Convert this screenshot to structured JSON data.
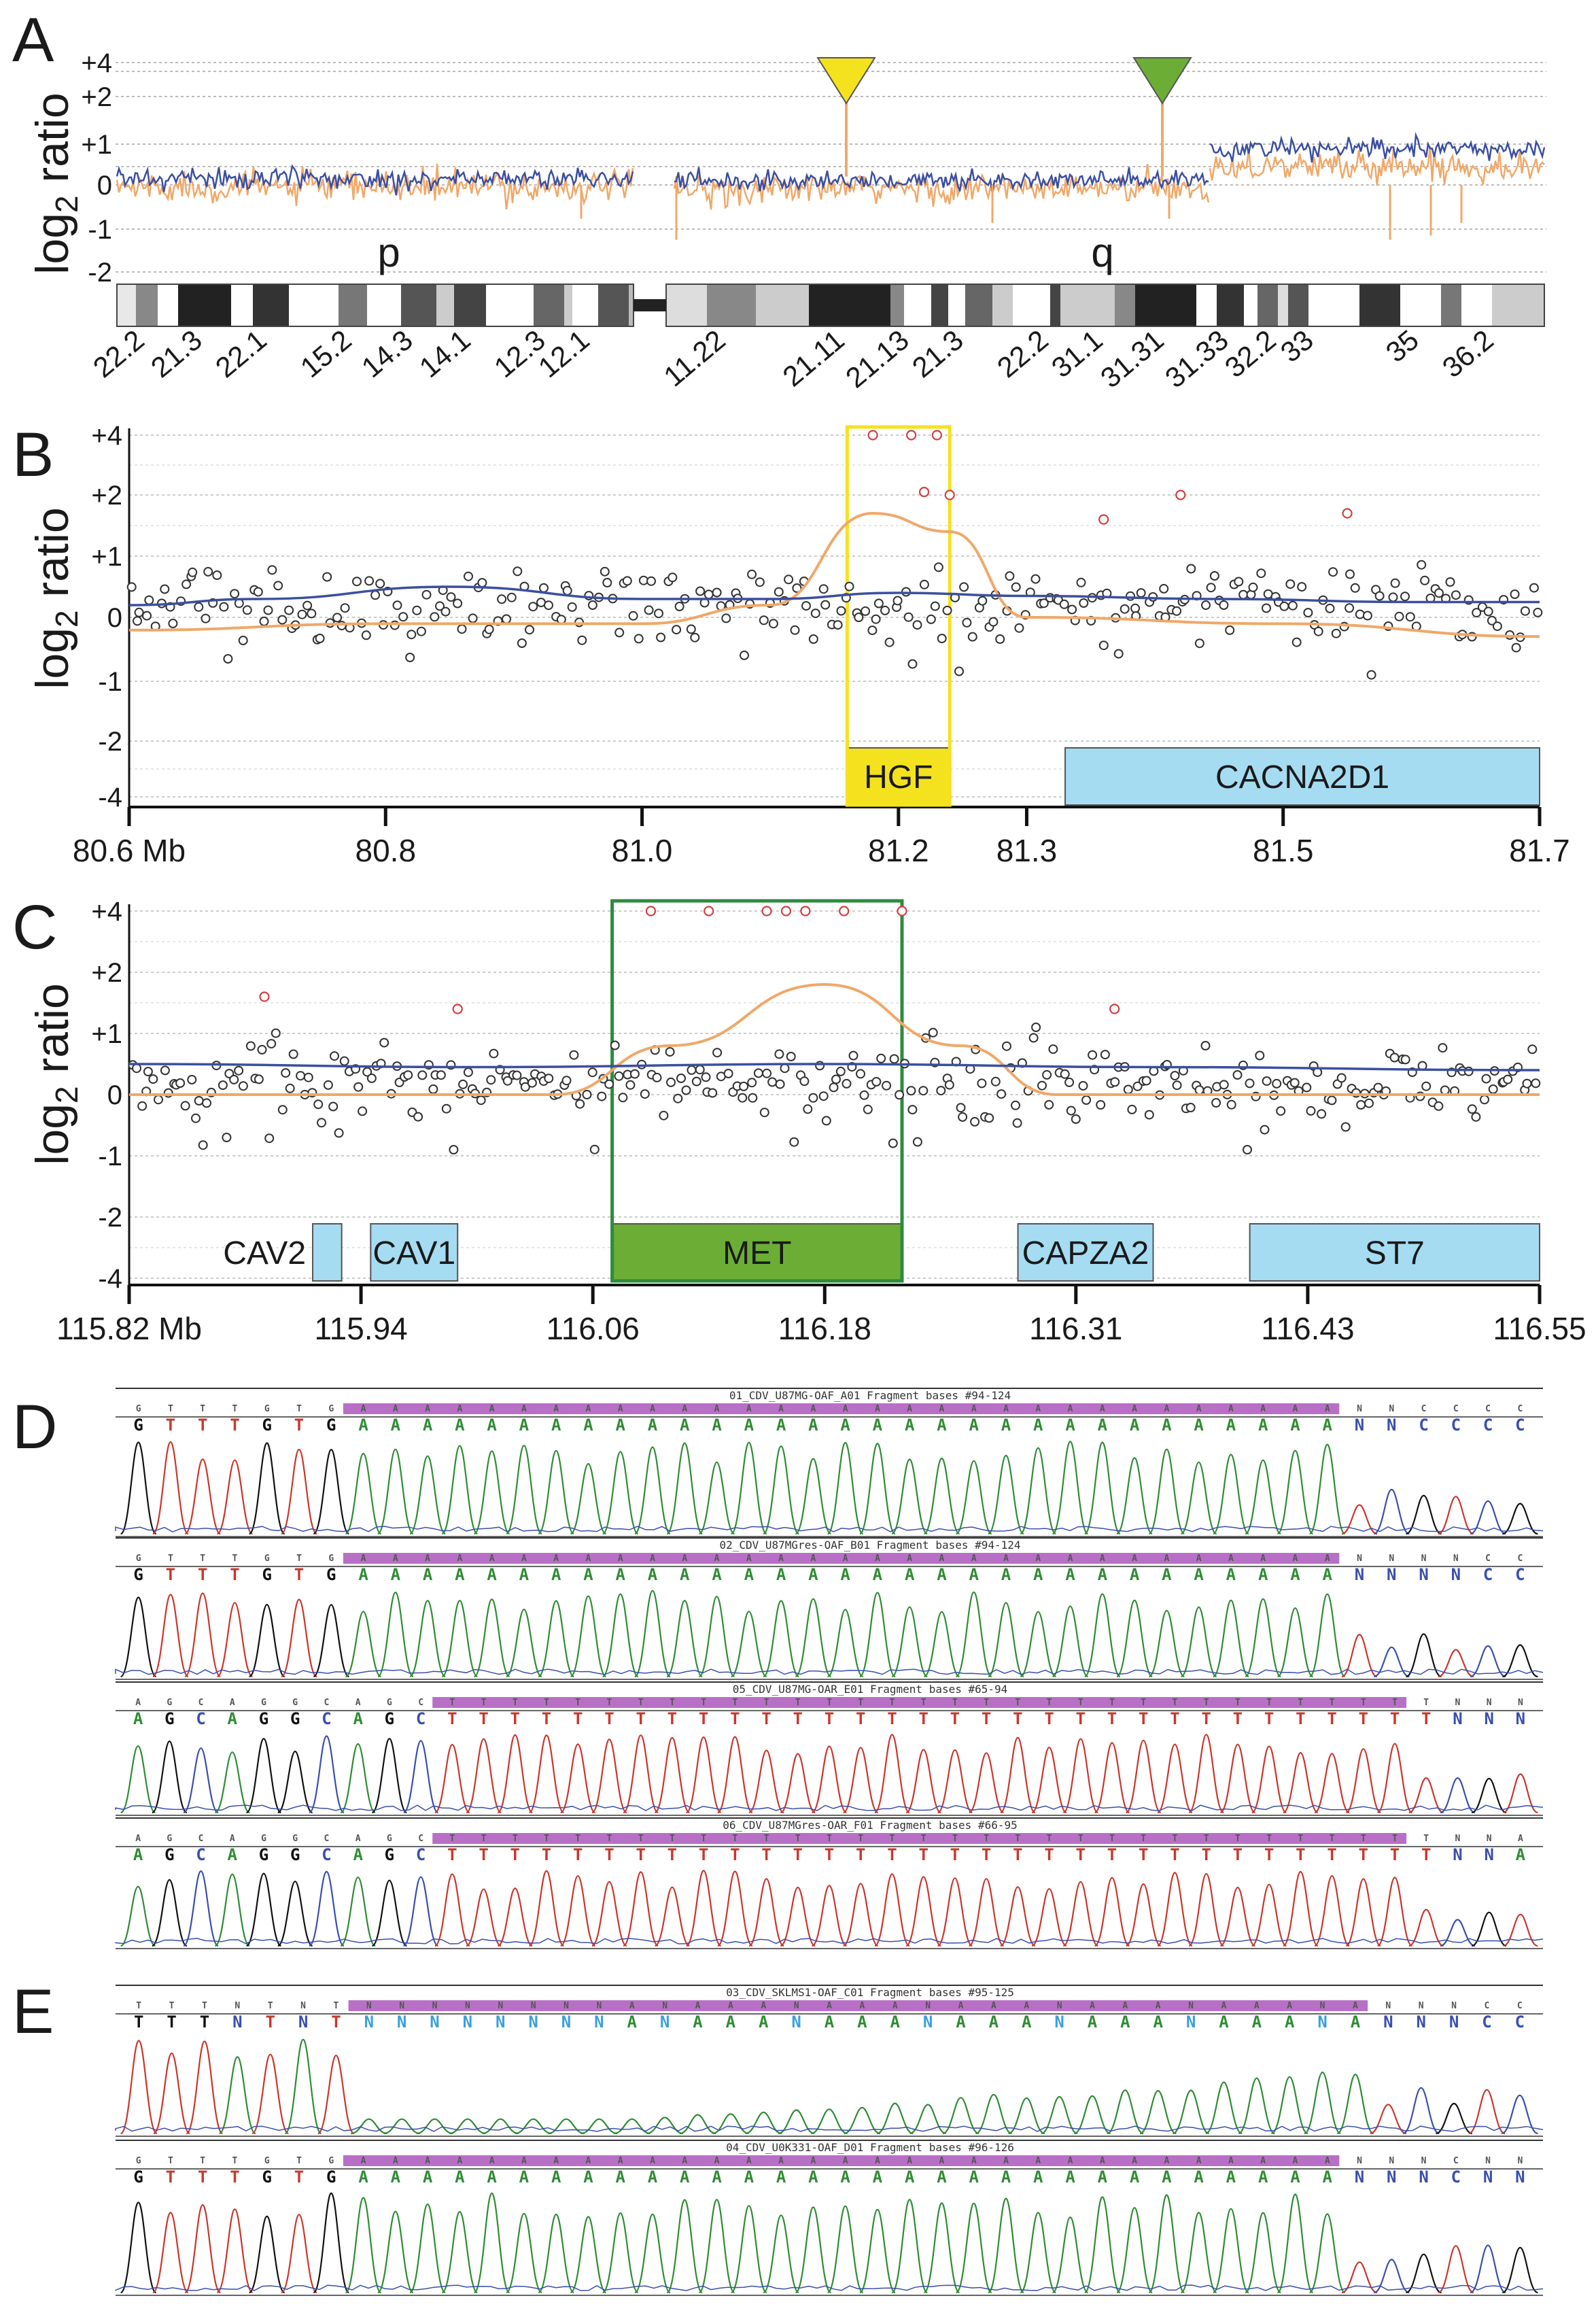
{
  "panels": {
    "A": {
      "label": "A",
      "ylabel": "log2 ratio",
      "yticks": [
        "+4",
        "+2",
        "+1",
        "0",
        "-1",
        "-2"
      ],
      "arm_p": "p",
      "arm_q": "q",
      "bands": [
        "22.2",
        "21.3",
        "22.1",
        "15.2",
        "14.3",
        "14.1",
        "12.3",
        "12.1",
        "11.22",
        "21.11",
        "21.13",
        "21.3",
        "22.2",
        "31.1",
        "31.31",
        "31.33",
        "32.2",
        "33",
        "35",
        "36.2"
      ],
      "markers": [
        {
          "name": "yellow-marker",
          "color": "#f5e21e"
        },
        {
          "name": "green-marker",
          "color": "#6cae35"
        }
      ]
    },
    "B": {
      "label": "B",
      "ylabel": "log2 ratio",
      "yticks": [
        "+4",
        "+2",
        "+1",
        "0",
        "-1",
        "-2",
        "-4"
      ],
      "xticks": [
        "80.6 Mb",
        "80.8",
        "81.0",
        "81.2",
        "81.3",
        "81.5",
        "81.7"
      ],
      "genes": [
        {
          "name": "HGF",
          "color": "#f5e21e"
        },
        {
          "name": "CACNA2D1",
          "color": "#a6dcf2"
        }
      ],
      "highlight_color": "#f5e21e"
    },
    "C": {
      "label": "C",
      "ylabel": "log2 ratio",
      "yticks": [
        "+4",
        "+2",
        "+1",
        "0",
        "-1",
        "-2",
        "-4"
      ],
      "xticks": [
        "115.82 Mb",
        "115.94",
        "116.06",
        "116.18",
        "116.31",
        "116.43",
        "116.55"
      ],
      "genes": [
        {
          "name": "CAV2",
          "color": "#a6dcf2"
        },
        {
          "name": "CAV1",
          "color": "#a6dcf2"
        },
        {
          "name": "MET",
          "color": "#6cae35"
        },
        {
          "name": "CAPZA2",
          "color": "#a6dcf2"
        },
        {
          "name": "ST7",
          "color": "#a6dcf2"
        }
      ],
      "highlight_color": "#2e8b3e"
    },
    "D": {
      "label": "D",
      "traces": [
        {
          "title": "01_CDV_U87MG-OAF_A01 Fragment bases #94-124",
          "prefix": "GTTTGTG",
          "prefix_colors": "KRRRKRK",
          "poly": "A",
          "suffix": "NNCCCC",
          "suffix_colors": "BBBBBB"
        },
        {
          "title": "02_CDV_U87MGres-OAF_B01 Fragment bases #94-124",
          "prefix": "GTTTGTG",
          "prefix_colors": "KRRRKRK",
          "poly": "A",
          "suffix": "NNNNCC",
          "suffix_colors": "BBBBBB"
        },
        {
          "title": "05_CDV_U87MG-OAR_E01 Fragment bases #65-94",
          "prefix": "AGCAGGCAGC",
          "prefix_colors": "GKBGKKBGKB",
          "poly": "T",
          "suffix": "TNNN",
          "suffix_colors": "RBBB"
        },
        {
          "title": "06_CDV_U87MGres-OAR_F01 Fragment bases #66-95",
          "prefix": "AGCAGGCAGC",
          "prefix_colors": "GKBGKKBGKB",
          "poly": "T",
          "suffix": "TNNA",
          "suffix_colors": "RBBG"
        }
      ]
    },
    "E": {
      "label": "E",
      "traces": [
        {
          "title": "03_CDV_SKLMS1-OAF_C01 Fragment bases #95-125",
          "prefix": "TTTNTNT",
          "prefix_colors": "KKKBRBR",
          "poly": "N",
          "suffix": "NNNCC",
          "suffix_colors": "BBBBB"
        },
        {
          "title": "04_CDV_U0K331-OAF_D01 Fragment bases #96-126",
          "prefix": "GTTTGTG",
          "prefix_colors": "KRRRKRK",
          "poly": "A",
          "suffix": "NNNCNN",
          "suffix_colors": "BBBBBB"
        }
      ]
    }
  },
  "chart_data": [
    {
      "panel": "A",
      "type": "line",
      "title": "",
      "ylabel": "log2 ratio",
      "ylim": [
        -2,
        4
      ],
      "series": [
        {
          "name": "blue smoothed",
          "color": "#3b4fa0",
          "segments": [
            {
              "from": "p-ter",
              "to": "p-cen",
              "value": 0.1
            },
            {
              "from": "q-cen",
              "to": "31.31",
              "value": 0.05
            },
            {
              "from": "31.31",
              "to": "q-ter",
              "value": 0.8
            }
          ]
        },
        {
          "name": "orange smoothed",
          "color": "#f0a868",
          "segments": [
            {
              "from": "p-ter",
              "to": "p-cen",
              "value": -0.1
            },
            {
              "from": "q-cen",
              "to": "31.31",
              "value": -0.15
            },
            {
              "from": "31.31",
              "to": "q-ter",
              "value": 0.45
            }
          ]
        }
      ],
      "peaks": [
        {
          "band": "21.11",
          "value": 2.4
        },
        {
          "band": "31.31",
          "value": 2.4
        }
      ]
    },
    {
      "panel": "B",
      "type": "scatter",
      "xlabel": "Mb",
      "xlim": [
        80.6,
        81.7
      ],
      "ylim": [
        -4,
        4
      ],
      "highlight": {
        "gene": "HGF",
        "x": [
          81.16,
          81.24
        ]
      },
      "genes": [
        {
          "name": "HGF",
          "x": [
            81.16,
            81.24
          ]
        },
        {
          "name": "CACNA2D1",
          "x": [
            81.33,
            81.7
          ]
        }
      ],
      "outliers_red": [
        [
          81.18,
          4
        ],
        [
          81.21,
          4
        ],
        [
          81.23,
          4
        ],
        [
          81.22,
          2.1
        ],
        [
          81.24,
          2.0
        ],
        [
          81.36,
          1.6
        ],
        [
          81.42,
          2.0
        ],
        [
          81.55,
          1.7
        ]
      ],
      "blue_line": [
        [
          80.6,
          0.2
        ],
        [
          80.7,
          0.3
        ],
        [
          80.85,
          0.5
        ],
        [
          81.0,
          0.3
        ],
        [
          81.1,
          0.3
        ],
        [
          81.2,
          0.4
        ],
        [
          81.3,
          0.35
        ],
        [
          81.45,
          0.3
        ],
        [
          81.6,
          0.25
        ],
        [
          81.7,
          0.25
        ]
      ],
      "orange_line": [
        [
          80.6,
          -0.2
        ],
        [
          80.8,
          -0.1
        ],
        [
          81.0,
          -0.1
        ],
        [
          81.1,
          0.2
        ],
        [
          81.18,
          1.7
        ],
        [
          81.24,
          1.4
        ],
        [
          81.3,
          0.0
        ],
        [
          81.5,
          -0.1
        ],
        [
          81.7,
          -0.3
        ]
      ]
    },
    {
      "panel": "C",
      "type": "scatter",
      "xlabel": "Mb",
      "xlim": [
        115.82,
        116.55
      ],
      "ylim": [
        -4,
        4
      ],
      "highlight": {
        "gene": "MET",
        "x": [
          116.07,
          116.22
        ]
      },
      "genes": [
        {
          "name": "CAV2",
          "x": [
            115.915,
            115.93
          ]
        },
        {
          "name": "CAV1",
          "x": [
            115.945,
            115.99
          ]
        },
        {
          "name": "MET",
          "x": [
            116.07,
            116.22
          ]
        },
        {
          "name": "CAPZA2",
          "x": [
            116.28,
            116.35
          ]
        },
        {
          "name": "ST7",
          "x": [
            116.4,
            116.55
          ]
        }
      ],
      "outliers_red": [
        [
          116.09,
          4
        ],
        [
          116.12,
          4
        ],
        [
          116.15,
          4
        ],
        [
          116.16,
          4
        ],
        [
          116.17,
          4
        ],
        [
          116.19,
          4
        ],
        [
          116.22,
          4
        ],
        [
          115.89,
          1.6
        ],
        [
          115.99,
          1.4
        ],
        [
          116.33,
          1.4
        ]
      ],
      "blue_line": [
        [
          115.82,
          0.5
        ],
        [
          116.0,
          0.45
        ],
        [
          116.18,
          0.5
        ],
        [
          116.35,
          0.45
        ],
        [
          116.55,
          0.4
        ]
      ],
      "orange_line": [
        [
          115.82,
          0.0
        ],
        [
          116.04,
          0.0
        ],
        [
          116.1,
          0.8
        ],
        [
          116.18,
          1.8
        ],
        [
          116.25,
          0.8
        ],
        [
          116.3,
          0.0
        ],
        [
          116.55,
          0.0
        ]
      ]
    }
  ]
}
